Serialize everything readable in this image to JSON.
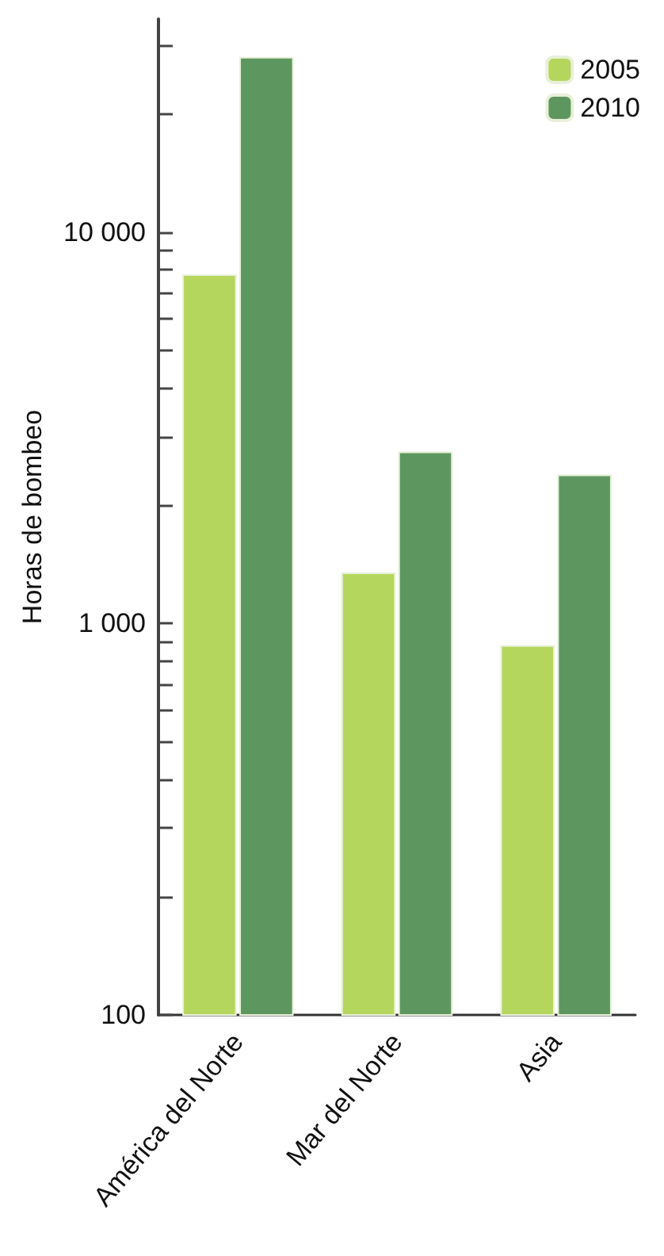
{
  "chart_data": {
    "type": "bar",
    "ylabel": "Horas de bombeo",
    "categories": [
      "América del Norte",
      "Mar del Norte",
      "Asia"
    ],
    "series": [
      {
        "name": "2005",
        "color": "#b5d65c",
        "values": [
          7800,
          1350,
          880
        ]
      },
      {
        "name": "2010",
        "color": "#5e9660",
        "values": [
          28000,
          2750,
          2400
        ]
      }
    ],
    "log": true,
    "ylim": [
      100,
      35000
    ],
    "yticks": [
      100,
      {
        "value": 200,
        "label": null
      },
      {
        "value": 300,
        "label": null
      },
      {
        "value": 400,
        "label": null
      },
      {
        "value": 500,
        "label": null
      },
      {
        "value": 600,
        "label": null
      },
      {
        "value": 700,
        "label": null
      },
      {
        "value": 800,
        "label": null
      },
      {
        "value": 900,
        "label": null
      },
      {
        "value": 1000,
        "label": "1 000"
      },
      {
        "value": 2000,
        "label": null
      },
      {
        "value": 3000,
        "label": null
      },
      {
        "value": 4000,
        "label": null
      },
      {
        "value": 5000,
        "label": null
      },
      {
        "value": 6000,
        "label": null
      },
      {
        "value": 7000,
        "label": null
      },
      {
        "value": 8000,
        "label": null
      },
      {
        "value": 9000,
        "label": null
      },
      {
        "value": 10000,
        "label": "10 000"
      },
      {
        "value": 20000,
        "label": null
      },
      {
        "value": 30000,
        "label": null
      }
    ],
    "grid": false,
    "legend": "top right"
  }
}
